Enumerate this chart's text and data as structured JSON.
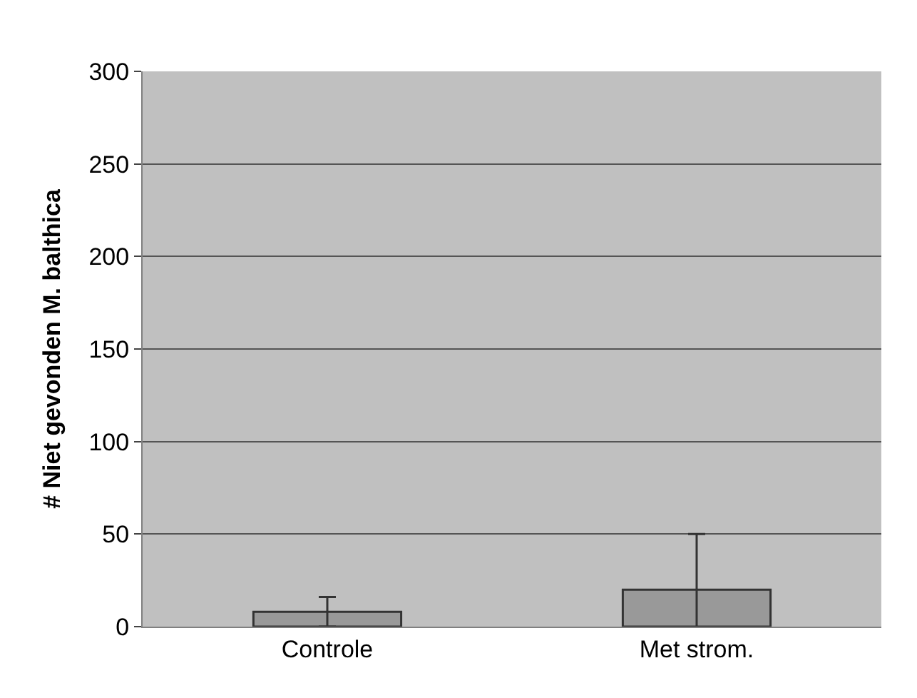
{
  "chart_data": {
    "type": "bar",
    "ylabel": "# Niet gevonden M. balthica",
    "categories": [
      "Controle",
      "Met strom."
    ],
    "values": [
      8,
      20
    ],
    "errors": [
      8,
      30
    ],
    "color": "#999999",
    "ylim": [
      0,
      300
    ],
    "yticks": [
      0,
      50,
      100,
      150,
      200,
      250,
      300
    ],
    "grid": "y"
  }
}
